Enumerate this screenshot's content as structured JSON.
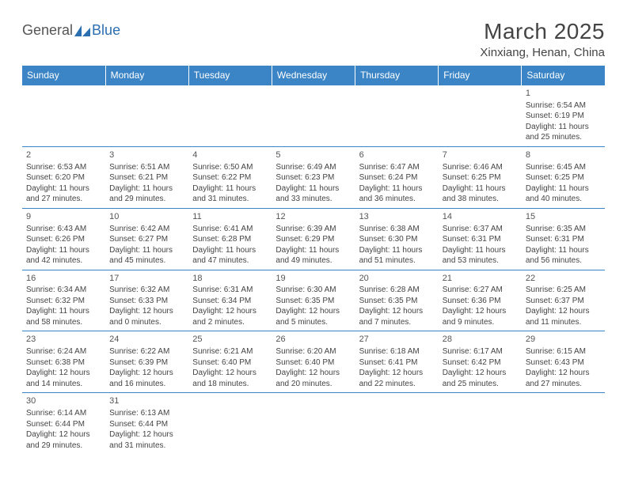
{
  "logo": {
    "text1": "General",
    "text2": "Blue"
  },
  "title": "March 2025",
  "location": "Xinxiang, Henan, China",
  "colors": {
    "header_bg": "#3b85c6",
    "header_fg": "#ffffff",
    "border": "#3b85c6",
    "shade": "#ececec",
    "text": "#444444"
  },
  "weekdays": [
    "Sunday",
    "Monday",
    "Tuesday",
    "Wednesday",
    "Thursday",
    "Friday",
    "Saturday"
  ],
  "weeks": [
    [
      null,
      null,
      null,
      null,
      null,
      null,
      {
        "n": "1",
        "sr": "Sunrise: 6:54 AM",
        "ss": "Sunset: 6:19 PM",
        "d1": "Daylight: 11 hours",
        "d2": "and 25 minutes.",
        "shade": false
      }
    ],
    [
      {
        "n": "2",
        "sr": "Sunrise: 6:53 AM",
        "ss": "Sunset: 6:20 PM",
        "d1": "Daylight: 11 hours",
        "d2": "and 27 minutes.",
        "shade": false
      },
      {
        "n": "3",
        "sr": "Sunrise: 6:51 AM",
        "ss": "Sunset: 6:21 PM",
        "d1": "Daylight: 11 hours",
        "d2": "and 29 minutes.",
        "shade": true
      },
      {
        "n": "4",
        "sr": "Sunrise: 6:50 AM",
        "ss": "Sunset: 6:22 PM",
        "d1": "Daylight: 11 hours",
        "d2": "and 31 minutes.",
        "shade": false
      },
      {
        "n": "5",
        "sr": "Sunrise: 6:49 AM",
        "ss": "Sunset: 6:23 PM",
        "d1": "Daylight: 11 hours",
        "d2": "and 33 minutes.",
        "shade": true
      },
      {
        "n": "6",
        "sr": "Sunrise: 6:47 AM",
        "ss": "Sunset: 6:24 PM",
        "d1": "Daylight: 11 hours",
        "d2": "and 36 minutes.",
        "shade": false
      },
      {
        "n": "7",
        "sr": "Sunrise: 6:46 AM",
        "ss": "Sunset: 6:25 PM",
        "d1": "Daylight: 11 hours",
        "d2": "and 38 minutes.",
        "shade": true
      },
      {
        "n": "8",
        "sr": "Sunrise: 6:45 AM",
        "ss": "Sunset: 6:25 PM",
        "d1": "Daylight: 11 hours",
        "d2": "and 40 minutes.",
        "shade": false
      }
    ],
    [
      {
        "n": "9",
        "sr": "Sunrise: 6:43 AM",
        "ss": "Sunset: 6:26 PM",
        "d1": "Daylight: 11 hours",
        "d2": "and 42 minutes.",
        "shade": false
      },
      {
        "n": "10",
        "sr": "Sunrise: 6:42 AM",
        "ss": "Sunset: 6:27 PM",
        "d1": "Daylight: 11 hours",
        "d2": "and 45 minutes.",
        "shade": true
      },
      {
        "n": "11",
        "sr": "Sunrise: 6:41 AM",
        "ss": "Sunset: 6:28 PM",
        "d1": "Daylight: 11 hours",
        "d2": "and 47 minutes.",
        "shade": false
      },
      {
        "n": "12",
        "sr": "Sunrise: 6:39 AM",
        "ss": "Sunset: 6:29 PM",
        "d1": "Daylight: 11 hours",
        "d2": "and 49 minutes.",
        "shade": true
      },
      {
        "n": "13",
        "sr": "Sunrise: 6:38 AM",
        "ss": "Sunset: 6:30 PM",
        "d1": "Daylight: 11 hours",
        "d2": "and 51 minutes.",
        "shade": false
      },
      {
        "n": "14",
        "sr": "Sunrise: 6:37 AM",
        "ss": "Sunset: 6:31 PM",
        "d1": "Daylight: 11 hours",
        "d2": "and 53 minutes.",
        "shade": true
      },
      {
        "n": "15",
        "sr": "Sunrise: 6:35 AM",
        "ss": "Sunset: 6:31 PM",
        "d1": "Daylight: 11 hours",
        "d2": "and 56 minutes.",
        "shade": false
      }
    ],
    [
      {
        "n": "16",
        "sr": "Sunrise: 6:34 AM",
        "ss": "Sunset: 6:32 PM",
        "d1": "Daylight: 11 hours",
        "d2": "and 58 minutes.",
        "shade": false
      },
      {
        "n": "17",
        "sr": "Sunrise: 6:32 AM",
        "ss": "Sunset: 6:33 PM",
        "d1": "Daylight: 12 hours",
        "d2": "and 0 minutes.",
        "shade": true
      },
      {
        "n": "18",
        "sr": "Sunrise: 6:31 AM",
        "ss": "Sunset: 6:34 PM",
        "d1": "Daylight: 12 hours",
        "d2": "and 2 minutes.",
        "shade": false
      },
      {
        "n": "19",
        "sr": "Sunrise: 6:30 AM",
        "ss": "Sunset: 6:35 PM",
        "d1": "Daylight: 12 hours",
        "d2": "and 5 minutes.",
        "shade": true
      },
      {
        "n": "20",
        "sr": "Sunrise: 6:28 AM",
        "ss": "Sunset: 6:35 PM",
        "d1": "Daylight: 12 hours",
        "d2": "and 7 minutes.",
        "shade": false
      },
      {
        "n": "21",
        "sr": "Sunrise: 6:27 AM",
        "ss": "Sunset: 6:36 PM",
        "d1": "Daylight: 12 hours",
        "d2": "and 9 minutes.",
        "shade": true
      },
      {
        "n": "22",
        "sr": "Sunrise: 6:25 AM",
        "ss": "Sunset: 6:37 PM",
        "d1": "Daylight: 12 hours",
        "d2": "and 11 minutes.",
        "shade": false
      }
    ],
    [
      {
        "n": "23",
        "sr": "Sunrise: 6:24 AM",
        "ss": "Sunset: 6:38 PM",
        "d1": "Daylight: 12 hours",
        "d2": "and 14 minutes.",
        "shade": false
      },
      {
        "n": "24",
        "sr": "Sunrise: 6:22 AM",
        "ss": "Sunset: 6:39 PM",
        "d1": "Daylight: 12 hours",
        "d2": "and 16 minutes.",
        "shade": true
      },
      {
        "n": "25",
        "sr": "Sunrise: 6:21 AM",
        "ss": "Sunset: 6:40 PM",
        "d1": "Daylight: 12 hours",
        "d2": "and 18 minutes.",
        "shade": false
      },
      {
        "n": "26",
        "sr": "Sunrise: 6:20 AM",
        "ss": "Sunset: 6:40 PM",
        "d1": "Daylight: 12 hours",
        "d2": "and 20 minutes.",
        "shade": true
      },
      {
        "n": "27",
        "sr": "Sunrise: 6:18 AM",
        "ss": "Sunset: 6:41 PM",
        "d1": "Daylight: 12 hours",
        "d2": "and 22 minutes.",
        "shade": false
      },
      {
        "n": "28",
        "sr": "Sunrise: 6:17 AM",
        "ss": "Sunset: 6:42 PM",
        "d1": "Daylight: 12 hours",
        "d2": "and 25 minutes.",
        "shade": true
      },
      {
        "n": "29",
        "sr": "Sunrise: 6:15 AM",
        "ss": "Sunset: 6:43 PM",
        "d1": "Daylight: 12 hours",
        "d2": "and 27 minutes.",
        "shade": false
      }
    ],
    [
      {
        "n": "30",
        "sr": "Sunrise: 6:14 AM",
        "ss": "Sunset: 6:44 PM",
        "d1": "Daylight: 12 hours",
        "d2": "and 29 minutes.",
        "shade": false
      },
      {
        "n": "31",
        "sr": "Sunrise: 6:13 AM",
        "ss": "Sunset: 6:44 PM",
        "d1": "Daylight: 12 hours",
        "d2": "and 31 minutes.",
        "shade": true
      },
      null,
      null,
      null,
      null,
      null
    ]
  ]
}
